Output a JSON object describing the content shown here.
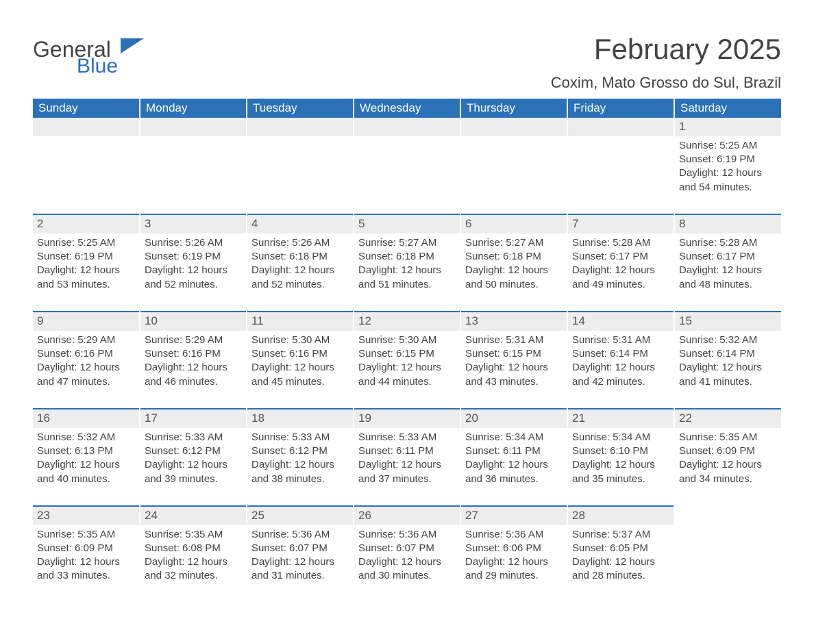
{
  "brand": {
    "word1": "General",
    "word2": "Blue",
    "color_primary": "#2a71b8"
  },
  "title": "February 2025",
  "location": "Coxim, Mato Grosso do Sul, Brazil",
  "colors": {
    "header_bg": "#2a71b8",
    "header_text": "#ffffff",
    "row_stripe": "#ededed",
    "text": "#424242",
    "background": "#ffffff"
  },
  "typography": {
    "title_fontsize": 42,
    "location_fontsize": 22,
    "header_fontsize": 17,
    "cell_fontsize": 15
  },
  "day_headers": [
    "Sunday",
    "Monday",
    "Tuesday",
    "Wednesday",
    "Thursday",
    "Friday",
    "Saturday"
  ],
  "weeks": [
    [
      null,
      null,
      null,
      null,
      null,
      null,
      {
        "n": "1",
        "sr": "Sunrise: 5:25 AM",
        "ss": "Sunset: 6:19 PM",
        "dl": "Daylight: 12 hours and 54 minutes."
      }
    ],
    [
      {
        "n": "2",
        "sr": "Sunrise: 5:25 AM",
        "ss": "Sunset: 6:19 PM",
        "dl": "Daylight: 12 hours and 53 minutes."
      },
      {
        "n": "3",
        "sr": "Sunrise: 5:26 AM",
        "ss": "Sunset: 6:19 PM",
        "dl": "Daylight: 12 hours and 52 minutes."
      },
      {
        "n": "4",
        "sr": "Sunrise: 5:26 AM",
        "ss": "Sunset: 6:18 PM",
        "dl": "Daylight: 12 hours and 52 minutes."
      },
      {
        "n": "5",
        "sr": "Sunrise: 5:27 AM",
        "ss": "Sunset: 6:18 PM",
        "dl": "Daylight: 12 hours and 51 minutes."
      },
      {
        "n": "6",
        "sr": "Sunrise: 5:27 AM",
        "ss": "Sunset: 6:18 PM",
        "dl": "Daylight: 12 hours and 50 minutes."
      },
      {
        "n": "7",
        "sr": "Sunrise: 5:28 AM",
        "ss": "Sunset: 6:17 PM",
        "dl": "Daylight: 12 hours and 49 minutes."
      },
      {
        "n": "8",
        "sr": "Sunrise: 5:28 AM",
        "ss": "Sunset: 6:17 PM",
        "dl": "Daylight: 12 hours and 48 minutes."
      }
    ],
    [
      {
        "n": "9",
        "sr": "Sunrise: 5:29 AM",
        "ss": "Sunset: 6:16 PM",
        "dl": "Daylight: 12 hours and 47 minutes."
      },
      {
        "n": "10",
        "sr": "Sunrise: 5:29 AM",
        "ss": "Sunset: 6:16 PM",
        "dl": "Daylight: 12 hours and 46 minutes."
      },
      {
        "n": "11",
        "sr": "Sunrise: 5:30 AM",
        "ss": "Sunset: 6:16 PM",
        "dl": "Daylight: 12 hours and 45 minutes."
      },
      {
        "n": "12",
        "sr": "Sunrise: 5:30 AM",
        "ss": "Sunset: 6:15 PM",
        "dl": "Daylight: 12 hours and 44 minutes."
      },
      {
        "n": "13",
        "sr": "Sunrise: 5:31 AM",
        "ss": "Sunset: 6:15 PM",
        "dl": "Daylight: 12 hours and 43 minutes."
      },
      {
        "n": "14",
        "sr": "Sunrise: 5:31 AM",
        "ss": "Sunset: 6:14 PM",
        "dl": "Daylight: 12 hours and 42 minutes."
      },
      {
        "n": "15",
        "sr": "Sunrise: 5:32 AM",
        "ss": "Sunset: 6:14 PM",
        "dl": "Daylight: 12 hours and 41 minutes."
      }
    ],
    [
      {
        "n": "16",
        "sr": "Sunrise: 5:32 AM",
        "ss": "Sunset: 6:13 PM",
        "dl": "Daylight: 12 hours and 40 minutes."
      },
      {
        "n": "17",
        "sr": "Sunrise: 5:33 AM",
        "ss": "Sunset: 6:12 PM",
        "dl": "Daylight: 12 hours and 39 minutes."
      },
      {
        "n": "18",
        "sr": "Sunrise: 5:33 AM",
        "ss": "Sunset: 6:12 PM",
        "dl": "Daylight: 12 hours and 38 minutes."
      },
      {
        "n": "19",
        "sr": "Sunrise: 5:33 AM",
        "ss": "Sunset: 6:11 PM",
        "dl": "Daylight: 12 hours and 37 minutes."
      },
      {
        "n": "20",
        "sr": "Sunrise: 5:34 AM",
        "ss": "Sunset: 6:11 PM",
        "dl": "Daylight: 12 hours and 36 minutes."
      },
      {
        "n": "21",
        "sr": "Sunrise: 5:34 AM",
        "ss": "Sunset: 6:10 PM",
        "dl": "Daylight: 12 hours and 35 minutes."
      },
      {
        "n": "22",
        "sr": "Sunrise: 5:35 AM",
        "ss": "Sunset: 6:09 PM",
        "dl": "Daylight: 12 hours and 34 minutes."
      }
    ],
    [
      {
        "n": "23",
        "sr": "Sunrise: 5:35 AM",
        "ss": "Sunset: 6:09 PM",
        "dl": "Daylight: 12 hours and 33 minutes."
      },
      {
        "n": "24",
        "sr": "Sunrise: 5:35 AM",
        "ss": "Sunset: 6:08 PM",
        "dl": "Daylight: 12 hours and 32 minutes."
      },
      {
        "n": "25",
        "sr": "Sunrise: 5:36 AM",
        "ss": "Sunset: 6:07 PM",
        "dl": "Daylight: 12 hours and 31 minutes."
      },
      {
        "n": "26",
        "sr": "Sunrise: 5:36 AM",
        "ss": "Sunset: 6:07 PM",
        "dl": "Daylight: 12 hours and 30 minutes."
      },
      {
        "n": "27",
        "sr": "Sunrise: 5:36 AM",
        "ss": "Sunset: 6:06 PM",
        "dl": "Daylight: 12 hours and 29 minutes."
      },
      {
        "n": "28",
        "sr": "Sunrise: 5:37 AM",
        "ss": "Sunset: 6:05 PM",
        "dl": "Daylight: 12 hours and 28 minutes."
      },
      null
    ]
  ]
}
